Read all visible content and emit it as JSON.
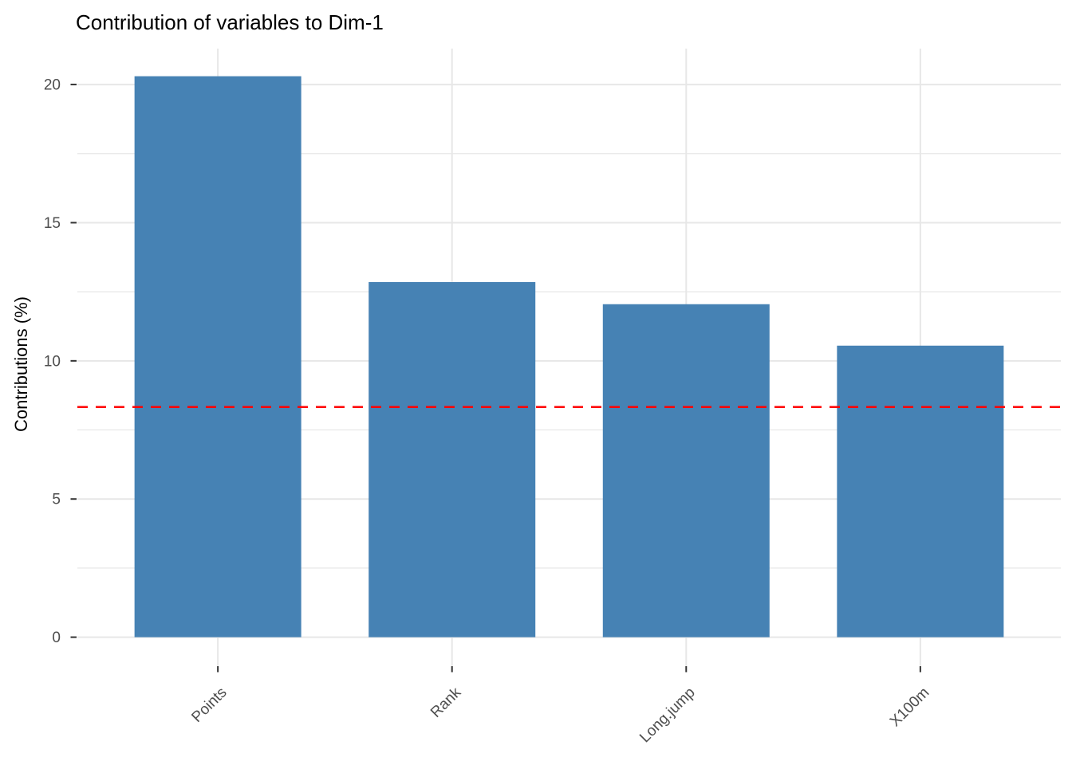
{
  "chart_data": {
    "type": "bar",
    "title": "Contribution of variables to Dim-1",
    "ylabel": "Contributions (%)",
    "xlabel": "",
    "categories": [
      "Points",
      "Rank",
      "Long.jump",
      "X100m"
    ],
    "values": [
      20.3,
      12.85,
      12.05,
      10.55
    ],
    "y_ticks": [
      0,
      5,
      10,
      15,
      20
    ],
    "y_minor_ticks": [
      2.5,
      7.5,
      12.5,
      17.5
    ],
    "ylim": [
      -1.05,
      21.3
    ],
    "bar_color": "#4682B4",
    "reference_line": {
      "value": 8.33,
      "color": "#FF0000",
      "style": "dashed"
    },
    "grid": true,
    "legend": "none",
    "x_label_rotation_deg": 45,
    "colors": {
      "grid": "#E7E7E7",
      "axis_text": "#4D4D4D",
      "tick_mark": "#333333",
      "title_text": "#000000",
      "background": "#FFFFFF"
    }
  }
}
